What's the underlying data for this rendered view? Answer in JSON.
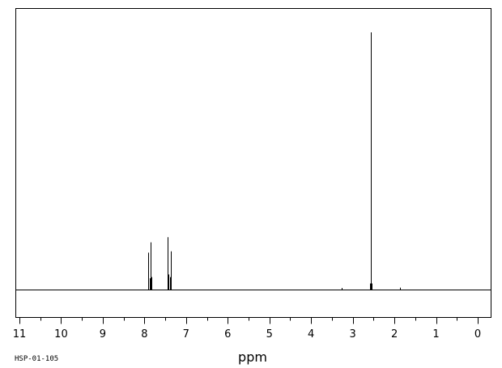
{
  "chart_data": {
    "type": "line",
    "title": "",
    "xlabel": "ppm",
    "ylabel": "",
    "xlim": [
      11,
      0
    ],
    "x_reversed": true,
    "ylim": [
      0,
      100
    ],
    "grid": false,
    "x_ticks": [
      11,
      10,
      9,
      8,
      7,
      6,
      5,
      4,
      3,
      2,
      1,
      0
    ],
    "x_tick_labels": [
      "11",
      "10",
      "9",
      "8",
      "7",
      "6",
      "5",
      "4",
      "3",
      "2",
      "1",
      "0"
    ],
    "series": [
      {
        "peaks": [
          {
            "x": 7.91,
            "y": 14.5
          },
          {
            "x": 7.88,
            "y": 4.5
          },
          {
            "x": 7.86,
            "y": 18.5
          },
          {
            "x": 7.84,
            "y": 5
          },
          {
            "x": 7.44,
            "y": 20.5
          },
          {
            "x": 7.42,
            "y": 6
          },
          {
            "x": 7.39,
            "y": 5
          },
          {
            "x": 7.37,
            "y": 15
          },
          {
            "x": 3.27,
            "y": 0.8
          },
          {
            "x": 2.58,
            "y": 2.5
          },
          {
            "x": 2.56,
            "y": 100
          },
          {
            "x": 2.54,
            "y": 2.5
          },
          {
            "x": 1.87,
            "y": 0.9
          }
        ]
      }
    ]
  },
  "footer_code": "HSP-01-105"
}
